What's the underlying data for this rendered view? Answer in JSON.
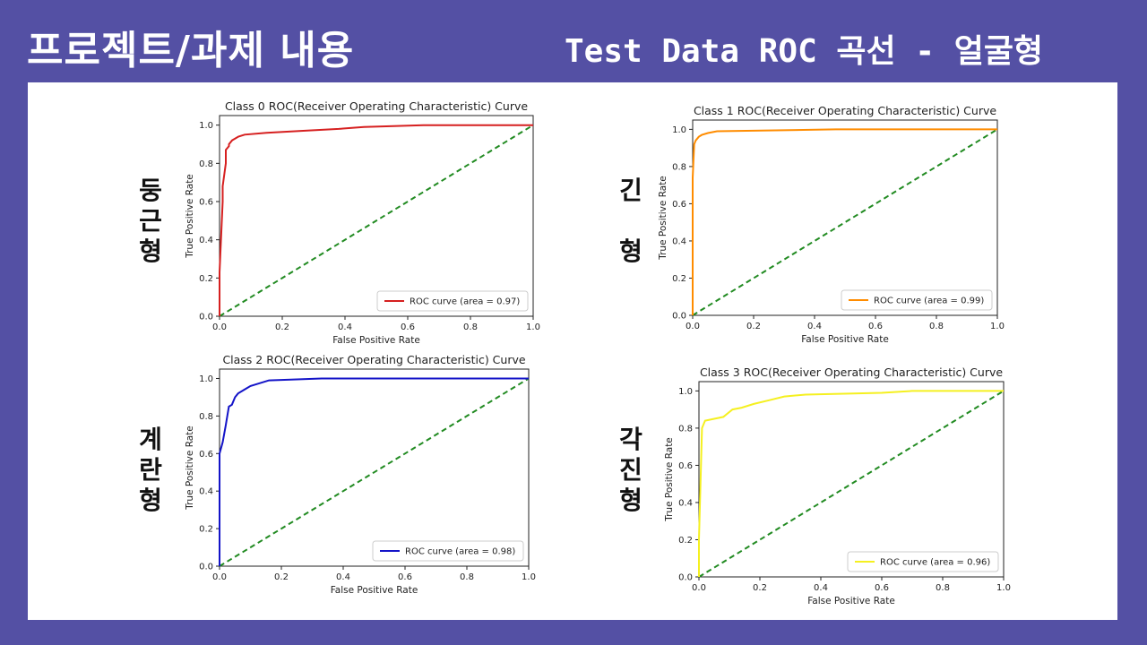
{
  "header": {
    "left_title": "프로젝트/과제 내용",
    "right_title": "Test Data ROC 곡선 - 얼굴형"
  },
  "faces": [
    {
      "chars": [
        "둥",
        "근",
        "형"
      ]
    },
    {
      "chars": [
        "긴",
        "",
        "형"
      ]
    },
    {
      "chars": [
        "계",
        "란",
        "형"
      ]
    },
    {
      "chars": [
        "각",
        "진",
        "형"
      ]
    }
  ],
  "chart_data": [
    {
      "type": "line",
      "title": "Class 0 ROC(Receiver Operating Characteristic) Curve",
      "xlabel": "False Positive Rate",
      "ylabel": "True Positive Rate",
      "xlim": [
        0,
        1
      ],
      "ylim": [
        0,
        1.05
      ],
      "ticks": [
        "0.0",
        "0.2",
        "0.4",
        "0.6",
        "0.8",
        "1.0"
      ],
      "legend_label": "ROC curve (area = 0.97)",
      "legend_position": "lower-right",
      "color": "#d62020",
      "roc_x": [
        0,
        0,
        0.01,
        0.01,
        0.02,
        0.02,
        0.03,
        0.03,
        0.04,
        0.05,
        0.06,
        0.08,
        0.15,
        0.26,
        0.38,
        0.46,
        0.65,
        1.0
      ],
      "roc_y": [
        0,
        0.23,
        0.6,
        0.68,
        0.8,
        0.87,
        0.89,
        0.9,
        0.92,
        0.93,
        0.94,
        0.95,
        0.96,
        0.97,
        0.98,
        0.99,
        1.0,
        1.0
      ]
    },
    {
      "type": "line",
      "title": "Class 1 ROC(Receiver Operating Characteristic) Curve",
      "xlabel": "False Positive Rate",
      "ylabel": "True Positive Rate",
      "xlim": [
        0,
        1
      ],
      "ylim": [
        0,
        1.05
      ],
      "ticks": [
        "0.0",
        "0.2",
        "0.4",
        "0.6",
        "0.8",
        "1.0"
      ],
      "legend_label": "ROC curve (area = 0.99)",
      "legend_position": "lower-right",
      "color": "#ff8c00",
      "roc_x": [
        0,
        0,
        0.005,
        0.01,
        0.02,
        0.03,
        0.05,
        0.08,
        0.47,
        1.0
      ],
      "roc_y": [
        0,
        0.74,
        0.92,
        0.94,
        0.96,
        0.97,
        0.98,
        0.99,
        1.0,
        1.0
      ]
    },
    {
      "type": "line",
      "title": "Class 2 ROC(Receiver Operating Characteristic) Curve",
      "xlabel": "False Positive Rate",
      "ylabel": "True Positive Rate",
      "xlim": [
        0,
        1
      ],
      "ylim": [
        0,
        1.05
      ],
      "ticks": [
        "0.0",
        "0.2",
        "0.4",
        "0.6",
        "0.8",
        "1.0"
      ],
      "legend_label": "ROC curve (area = 0.98)",
      "legend_position": "lower-right",
      "color": "#1414c8",
      "roc_x": [
        0,
        0,
        0.01,
        0.02,
        0.03,
        0.04,
        0.05,
        0.06,
        0.08,
        0.1,
        0.12,
        0.16,
        0.33,
        1.0
      ],
      "roc_y": [
        0,
        0.6,
        0.66,
        0.75,
        0.85,
        0.86,
        0.9,
        0.92,
        0.94,
        0.96,
        0.97,
        0.99,
        1.0,
        1.0
      ]
    },
    {
      "type": "line",
      "title": "Class 3 ROC(Receiver Operating Characteristic) Curve",
      "xlabel": "False Positive Rate",
      "ylabel": "True Positive Rate",
      "xlim": [
        0,
        1
      ],
      "ylim": [
        0,
        1.05
      ],
      "ticks": [
        "0.0",
        "0.2",
        "0.4",
        "0.6",
        "0.8",
        "1.0"
      ],
      "legend_label": "ROC curve (area = 0.96)",
      "legend_position": "lower-right",
      "color": "#f5f020",
      "roc_x": [
        0,
        0,
        0.01,
        0.02,
        0.05,
        0.08,
        0.11,
        0.14,
        0.18,
        0.23,
        0.28,
        0.35,
        0.6,
        0.7,
        1.0
      ],
      "roc_y": [
        0,
        0.2,
        0.8,
        0.84,
        0.85,
        0.86,
        0.9,
        0.91,
        0.93,
        0.95,
        0.97,
        0.98,
        0.99,
        1.0,
        1.0
      ]
    }
  ]
}
